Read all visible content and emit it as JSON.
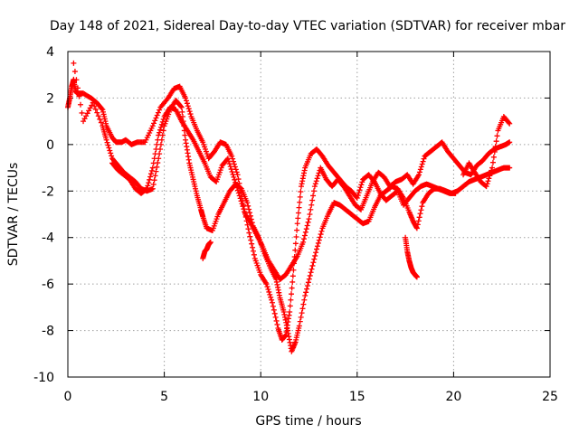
{
  "chart_data": {
    "type": "scatter",
    "title": "Day 148 of 2021, Sidereal Day-to-day VTEC variation (SDTVAR) for receiver mbar",
    "xlabel": "GPS time / hours",
    "ylabel": "SDTVAR / TECUs",
    "xlim": [
      0,
      25
    ],
    "ylim": [
      -10,
      4
    ],
    "xticks": [
      0,
      5,
      10,
      15,
      20,
      25
    ],
    "yticks": [
      -10,
      -8,
      -6,
      -4,
      -2,
      0,
      2,
      4
    ],
    "xtick_labels": [
      "0",
      "5",
      "10",
      "15",
      "20",
      "25"
    ],
    "ytick_labels": [
      "-10",
      "-8",
      "-6",
      "-4",
      "-2",
      "0",
      "2",
      "4"
    ],
    "grid": true,
    "marker": "plus",
    "color": "#ff0000",
    "series": [
      {
        "x": [
          0.0,
          0.1,
          0.2,
          0.3,
          0.4,
          0.5,
          0.8,
          1.2,
          1.5,
          1.8,
          2.0,
          2.3,
          2.5,
          2.8,
          3.0,
          3.3,
          3.6,
          4.0,
          4.4,
          4.8,
          5.2,
          5.5,
          5.8,
          6.1,
          6.4,
          6.7,
          7.0,
          7.3,
          7.6,
          7.9,
          8.2,
          8.5,
          8.8,
          9.1,
          9.4,
          9.7,
          10.0,
          10.3,
          10.6,
          10.9,
          11.1,
          11.3,
          11.5,
          11.7,
          11.9,
          12.1,
          12.3,
          12.6,
          12.9,
          13.2,
          13.5,
          13.8,
          14.1,
          14.4,
          14.7,
          15.0,
          15.3,
          15.6,
          15.9,
          16.2,
          16.5,
          16.8,
          17.1,
          17.4,
          17.7,
          18.0,
          18.3,
          18.6,
          18.9,
          19.2,
          19.5,
          19.8,
          20.1
        ],
        "y": [
          1.6,
          2.0,
          2.5,
          2.8,
          2.3,
          2.2,
          2.2,
          2.0,
          1.8,
          1.5,
          0.8,
          0.3,
          0.1,
          0.1,
          0.2,
          0.0,
          0.1,
          0.1,
          0.8,
          1.6,
          2.0,
          2.4,
          2.5,
          2.0,
          1.2,
          0.6,
          0.1,
          -0.6,
          -0.3,
          0.1,
          0.0,
          -0.5,
          -1.3,
          -2.6,
          -3.8,
          -4.9,
          -5.6,
          -6.0,
          -6.8,
          -7.9,
          -8.4,
          -8.2,
          -7.2,
          -5.4,
          -3.4,
          -1.8,
          -1.0,
          -0.4,
          -0.2,
          -0.5,
          -0.9,
          -1.2,
          -1.5,
          -1.8,
          -2.0,
          -2.3,
          -1.5,
          -1.3,
          -1.6,
          -2.1,
          -2.4,
          -2.2,
          -2.0,
          -2.6,
          -2.3,
          -2.0,
          -1.8,
          -1.7,
          -1.8,
          -1.9,
          -2.0,
          -2.1,
          -2.1
        ]
      },
      {
        "x": [
          0.3,
          0.8,
          1.3,
          1.8,
          2.0,
          2.3,
          2.6,
          2.9,
          3.2,
          3.5,
          3.8,
          4.1,
          4.4,
          4.7,
          5.0,
          5.3,
          5.6,
          5.9,
          6.1,
          6.3,
          6.5,
          6.7,
          6.9,
          7.0,
          7.2,
          7.5,
          7.8,
          8.1,
          8.4,
          8.7,
          9.0,
          9.3,
          9.6,
          9.9,
          10.2,
          10.5,
          10.8,
          11.0,
          11.2,
          11.4,
          11.6,
          11.8,
          12.0,
          12.3,
          12.6,
          12.9,
          13.2,
          13.5,
          13.8,
          14.1,
          14.4,
          14.7,
          15.0,
          15.3,
          15.6,
          15.9,
          16.2,
          16.5,
          16.8,
          17.1,
          17.4,
          17.7,
          17.9,
          18.1,
          18.4,
          18.7,
          19.0,
          19.3,
          19.6,
          19.9,
          20.2,
          20.5,
          20.8,
          21.1,
          21.4,
          21.7,
          22.0,
          22.3,
          22.6,
          22.9
        ],
        "y": [
          3.5,
          1.0,
          1.8,
          0.8,
          0.2,
          -0.6,
          -0.9,
          -1.2,
          -1.4,
          -1.6,
          -1.9,
          -2.0,
          -1.9,
          -0.6,
          0.8,
          1.5,
          1.9,
          1.6,
          0.2,
          -0.8,
          -1.5,
          -2.2,
          -2.8,
          -3.1,
          -3.6,
          -3.7,
          -3.0,
          -2.5,
          -2.0,
          -1.7,
          -1.9,
          -2.5,
          -3.5,
          -4.0,
          -4.7,
          -5.3,
          -5.8,
          -6.6,
          -7.2,
          -8.0,
          -8.9,
          -8.5,
          -7.8,
          -6.5,
          -5.5,
          -4.5,
          -3.6,
          -3.0,
          -2.5,
          -2.6,
          -2.8,
          -3.0,
          -3.2,
          -3.4,
          -3.3,
          -2.7,
          -2.2,
          -2.0,
          -1.8,
          -1.9,
          -2.3,
          -2.9,
          -3.3,
          -3.6,
          -2.5,
          -2.1,
          -1.9,
          -1.9,
          -2.0,
          -2.1,
          -2.0,
          -1.8,
          -1.6,
          -1.5,
          -1.4,
          -1.3,
          -1.2,
          -1.1,
          -1.0,
          -1.0
        ]
      },
      {
        "x": [
          2.3,
          2.6,
          2.9,
          3.2,
          3.5,
          3.8,
          4.1,
          4.4,
          4.7,
          5.0,
          5.3,
          5.6,
          5.9,
          6.2,
          6.5,
          6.8,
          7.1,
          7.4,
          7.7,
          8.0,
          8.3,
          8.6,
          8.9,
          9.2,
          9.5,
          9.8,
          10.1,
          10.4,
          10.7,
          11.0,
          11.3,
          11.6,
          11.9,
          12.2,
          12.5,
          12.8,
          13.1,
          13.4,
          13.7,
          14.0,
          14.3,
          14.6,
          14.9,
          15.2,
          15.5,
          15.8,
          16.1,
          16.4,
          16.7,
          17.0,
          17.3,
          17.6,
          17.9,
          18.2,
          18.5,
          18.8,
          19.1,
          19.4,
          19.7,
          20.0,
          20.3,
          20.6,
          20.9,
          21.2,
          21.5,
          21.8,
          22.1,
          22.4,
          22.7,
          22.9
        ],
        "y": [
          -0.8,
          -1.1,
          -1.3,
          -1.5,
          -1.9,
          -2.1,
          -1.9,
          -1.0,
          0.4,
          1.2,
          1.6,
          1.5,
          1.0,
          0.6,
          0.2,
          -0.3,
          -0.8,
          -1.4,
          -1.6,
          -0.9,
          -0.6,
          -1.4,
          -2.2,
          -3.0,
          -3.4,
          -3.9,
          -4.4,
          -5.0,
          -5.4,
          -5.8,
          -5.6,
          -5.2,
          -4.8,
          -4.2,
          -3.2,
          -1.8,
          -1.0,
          -1.5,
          -1.8,
          -1.5,
          -1.8,
          -2.2,
          -2.6,
          -2.8,
          -2.2,
          -1.6,
          -1.2,
          -1.4,
          -1.8,
          -1.6,
          -1.5,
          -1.3,
          -1.7,
          -1.3,
          -0.5,
          -0.3,
          -0.1,
          0.1,
          -0.3,
          -0.6,
          -0.9,
          -1.2,
          -1.3,
          -0.9,
          -0.7,
          -0.4,
          -0.2,
          -0.1,
          0.0,
          0.1
        ]
      },
      {
        "x": [
          17.5,
          17.6,
          17.7,
          17.8,
          17.9,
          18.0,
          18.1
        ],
        "y": [
          -4.0,
          -4.6,
          -5.0,
          -5.3,
          -5.5,
          -5.6,
          -5.7
        ]
      },
      {
        "x": [
          7.0,
          7.1,
          7.2,
          7.3,
          7.4
        ],
        "y": [
          -4.9,
          -4.6,
          -4.5,
          -4.3,
          -4.2
        ]
      },
      {
        "x": [
          20.5,
          20.8,
          21.1,
          21.4,
          21.7,
          22.0,
          22.3,
          22.6,
          22.9
        ],
        "y": [
          -1.3,
          -0.8,
          -1.2,
          -1.6,
          -1.8,
          -1.0,
          0.6,
          1.2,
          0.9
        ]
      }
    ]
  }
}
